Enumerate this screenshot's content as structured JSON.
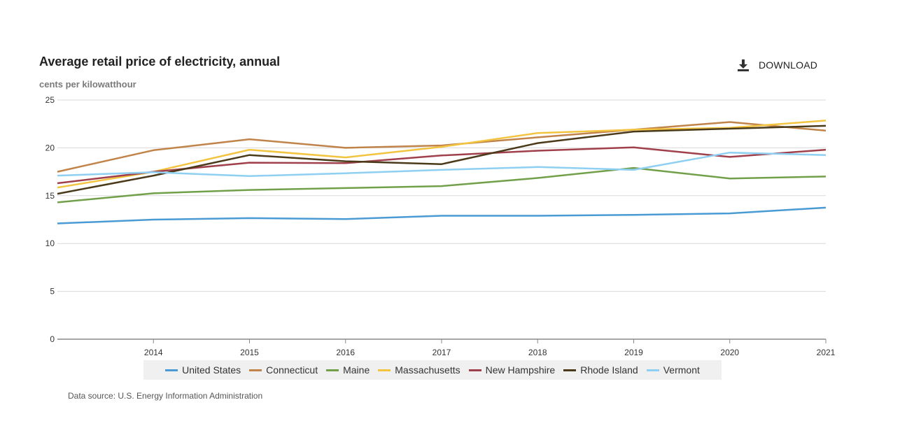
{
  "header": {
    "title": "Average retail price of electricity, annual",
    "unit": "cents per kilowatthour",
    "download_label": "DOWNLOAD"
  },
  "footer": {
    "source": "Data source: U.S. Energy Information Administration"
  },
  "chart_data": {
    "type": "line",
    "title": "Average retail price of electricity, annual",
    "ylabel": "cents per kilowatthour",
    "xlabel": "",
    "ylim": [
      0,
      25
    ],
    "yticks": [
      "0",
      "5",
      "10",
      "15",
      "20",
      "25"
    ],
    "x": [
      2013,
      2014,
      2015,
      2016,
      2017,
      2018,
      2019,
      2020,
      2021
    ],
    "xticks": [
      "2014",
      "2015",
      "2016",
      "2017",
      "2018",
      "2019",
      "2020",
      "2021"
    ],
    "grid": true,
    "legend_position": "bottom",
    "series": [
      {
        "name": "United States",
        "color": "#4a9bd4",
        "values": [
          12.1,
          12.5,
          12.65,
          12.55,
          12.9,
          12.9,
          13.0,
          13.15,
          13.75
        ]
      },
      {
        "name": "Connecticut",
        "color": "#c0844a",
        "values": [
          17.5,
          19.75,
          20.9,
          20.0,
          20.25,
          21.1,
          21.9,
          22.7,
          21.8
        ]
      },
      {
        "name": "Maine",
        "color": "#72a04a",
        "values": [
          14.3,
          15.25,
          15.6,
          15.8,
          16.0,
          16.85,
          17.9,
          16.8,
          17.0
        ]
      },
      {
        "name": "Massachusetts",
        "color": "#f2c440",
        "values": [
          15.85,
          17.5,
          19.8,
          19.0,
          20.1,
          21.55,
          21.9,
          22.1,
          22.85
        ]
      },
      {
        "name": "New Hampshire",
        "color": "#a0404c",
        "values": [
          16.3,
          17.5,
          18.45,
          18.4,
          19.2,
          19.7,
          20.05,
          19.05,
          19.8
        ]
      },
      {
        "name": "Rhode Island",
        "color": "#4a3a1a",
        "values": [
          15.2,
          17.1,
          19.25,
          18.6,
          18.3,
          20.5,
          21.7,
          22.0,
          22.3
        ]
      },
      {
        "name": "Vermont",
        "color": "#8ecff2",
        "values": [
          17.1,
          17.45,
          17.05,
          17.35,
          17.7,
          18.0,
          17.7,
          19.5,
          19.25
        ]
      }
    ]
  }
}
